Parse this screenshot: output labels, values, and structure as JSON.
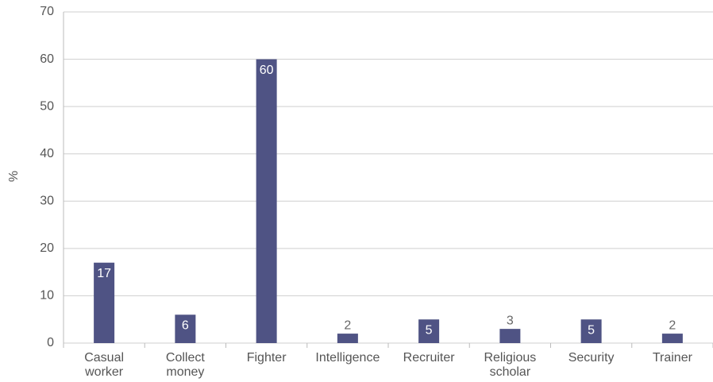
{
  "chart_data": {
    "type": "bar",
    "y_label": "%",
    "categories": [
      [
        "Casual",
        "worker"
      ],
      [
        "Collect",
        "money"
      ],
      [
        "Fighter"
      ],
      [
        "Intelligence"
      ],
      [
        "Recruiter"
      ],
      [
        "Religious",
        "scholar"
      ],
      [
        "Security"
      ],
      [
        "Trainer"
      ]
    ],
    "values": [
      17,
      6,
      60,
      2,
      5,
      3,
      5,
      2
    ],
    "color": "#4f5384",
    "ylim": [
      0,
      70
    ],
    "yticks": [
      0,
      10,
      20,
      30,
      40,
      50,
      60,
      70
    ],
    "grid": true
  }
}
